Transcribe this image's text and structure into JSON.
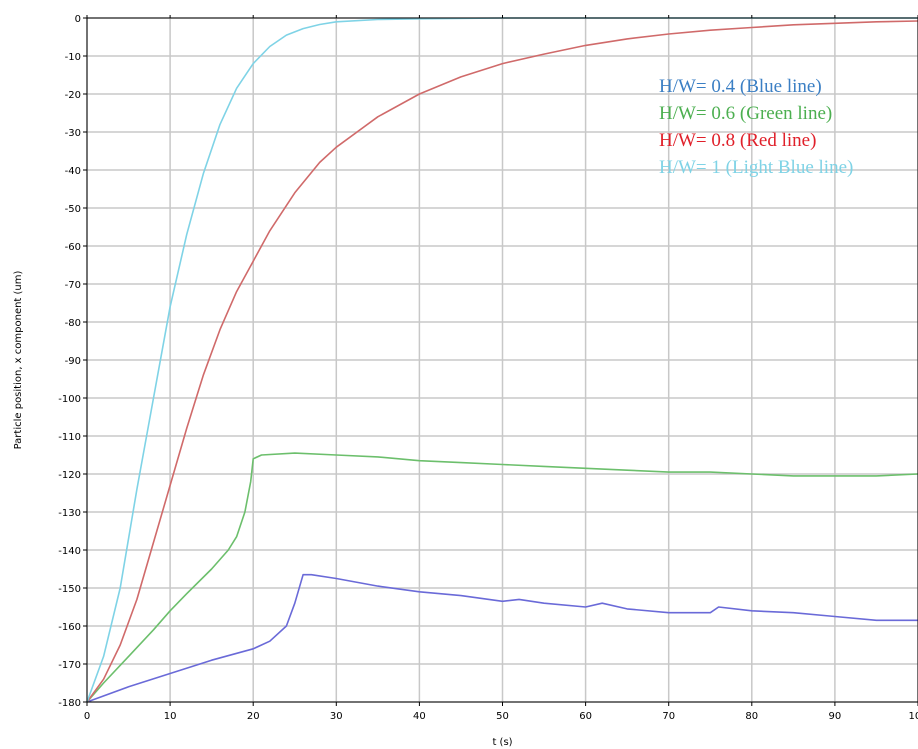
{
  "chart_data": {
    "type": "line",
    "xlabel": "t (s)",
    "ylabel": "Particle position, x component (um)",
    "xlim": [
      0,
      100
    ],
    "ylim": [
      -180,
      0
    ],
    "xticks": [
      "0",
      "10",
      "20",
      "30",
      "40",
      "50",
      "60",
      "70",
      "80",
      "90",
      "100"
    ],
    "yticks": [
      "0",
      "-10",
      "-20",
      "-30",
      "-40",
      "-50",
      "-60",
      "-70",
      "-80",
      "-90",
      "-100",
      "-110",
      "-120",
      "-130",
      "-140",
      "-150",
      "-160",
      "-170",
      "-180"
    ],
    "grid": true,
    "legend": {
      "placement": "top-right",
      "entries": [
        {
          "text": "H/W= 0.4 (Blue line)",
          "color": "#3b7fc4"
        },
        {
          "text": "H/W= 0.6 (Green line)",
          "color": "#4caf50"
        },
        {
          "text": "H/W= 0.8 (Red line)",
          "color": "#e0202a"
        },
        {
          "text": "H/W= 1 (Light Blue line)",
          "color": "#7fd3e6"
        }
      ]
    },
    "series": [
      {
        "color": "#6a6ad8",
        "x": [
          0,
          5,
          10,
          15,
          20,
          22,
          24,
          25,
          26,
          27,
          30,
          35,
          40,
          45,
          50,
          52,
          55,
          60,
          62,
          65,
          70,
          75,
          76,
          80,
          85,
          90,
          95,
          100
        ],
        "y": [
          -180,
          -176,
          -172.5,
          -169,
          -166,
          -164,
          -160,
          -154,
          -146.5,
          -146.5,
          -147.5,
          -149.5,
          -151,
          -152,
          -153.5,
          -153,
          -154,
          -155,
          -154,
          -155.5,
          -156.5,
          -156.5,
          -155,
          -156,
          -156.5,
          -157.5,
          -158.5,
          -158.5
        ]
      },
      {
        "color": "#6cbf6c",
        "x": [
          0,
          2,
          5,
          8,
          10,
          12,
          15,
          17,
          18,
          19,
          19.7,
          20,
          21,
          25,
          30,
          35,
          40,
          45,
          50,
          55,
          60,
          65,
          70,
          75,
          80,
          85,
          90,
          95,
          100
        ],
        "y": [
          -180,
          -175,
          -168,
          -161,
          -156,
          -151.5,
          -145,
          -140,
          -136.5,
          -130,
          -122,
          -116,
          -115,
          -114.5,
          -115,
          -115.5,
          -116.5,
          -117,
          -117.5,
          -118,
          -118.5,
          -119,
          -119.5,
          -119.5,
          -120,
          -120.5,
          -120.5,
          -120.5,
          -120
        ]
      },
      {
        "color": "#d06a6a",
        "x": [
          0,
          2,
          4,
          6,
          8,
          10,
          12,
          14,
          16,
          18,
          20,
          22,
          25,
          28,
          30,
          35,
          40,
          45,
          50,
          55,
          60,
          65,
          70,
          75,
          80,
          85,
          90,
          95,
          100
        ],
        "y": [
          -180,
          -174,
          -165,
          -153,
          -138,
          -123,
          -108,
          -94,
          -82,
          -72,
          -64,
          -56,
          -46,
          -38,
          -34,
          -26,
          -20,
          -15.5,
          -12,
          -9.5,
          -7.2,
          -5.5,
          -4.2,
          -3.2,
          -2.5,
          -1.8,
          -1.4,
          -1.0,
          -0.8
        ]
      },
      {
        "color": "#7fd3e6",
        "x": [
          0,
          2,
          4,
          6,
          8,
          10,
          12,
          14,
          16,
          18,
          20,
          22,
          24,
          26,
          28,
          30,
          35,
          40,
          50,
          60,
          70,
          80,
          90,
          100
        ],
        "y": [
          -180,
          -168,
          -150,
          -124,
          -100,
          -76,
          -57,
          -41,
          -28,
          -18.5,
          -12,
          -7.5,
          -4.5,
          -2.8,
          -1.7,
          -1.0,
          -0.4,
          -0.2,
          0,
          0,
          0,
          0,
          0,
          0
        ]
      }
    ]
  }
}
